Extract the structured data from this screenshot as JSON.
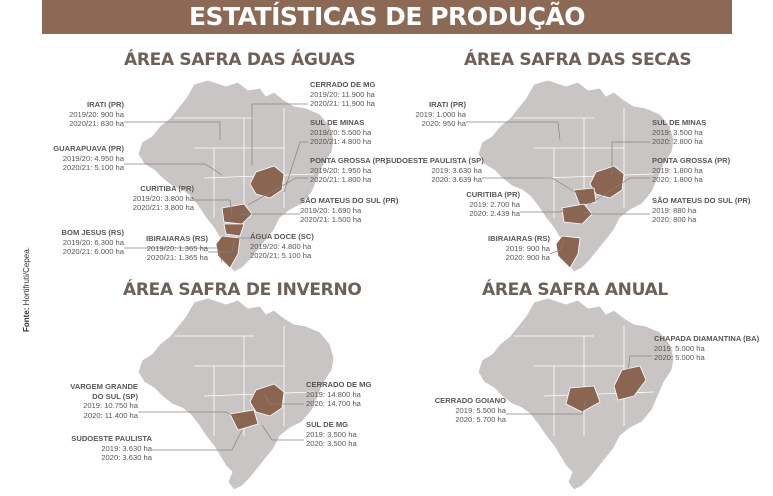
{
  "title": "ESTATÍSTICAS DE PRODUÇÃO",
  "source_label": "Fonte:",
  "source_value": "Hortifruti/Cepea.",
  "colors": {
    "banner": "#8c6955",
    "map_base": "#c9c5c4",
    "highlight": "#8a6552",
    "state_border": "#ffffff"
  },
  "sections": {
    "aguas": {
      "title": "ÁREA SAFRA DAS ÁGUAS",
      "labels": [
        {
          "name": "IRATI (PR)",
          "lines": [
            "2019/20: 900 ha",
            "2020/21: 830 ha"
          ]
        },
        {
          "name": "GUARAPUAVA (PR)",
          "lines": [
            "2019/20: 4.950 ha",
            "2020/21: 5.100 ha"
          ]
        },
        {
          "name": "CURITIBA (PR)",
          "lines": [
            "2019/20: 3.800 ha",
            "2020/21: 3.800 ha"
          ]
        },
        {
          "name": "BOM JESUS (RS)",
          "lines": [
            "2019/20: 6.300 ha",
            "2020/21: 6.000 ha"
          ]
        },
        {
          "name": "IBIRAIARAS (RS)",
          "lines": [
            "2019/20: 1.365 ha",
            "2020/21: 1.365 ha"
          ]
        },
        {
          "name": "CERRADO DE MG",
          "lines": [
            "2019/20: 11.900 ha",
            "2020/21: 11.900 ha"
          ]
        },
        {
          "name": "SUL DE MINAS",
          "lines": [
            "2019/20: 5.500 ha",
            "2020/21: 4.800 ha"
          ]
        },
        {
          "name": "PONTA GROSSA (PR)",
          "lines": [
            "2019/20: 1.950 ha",
            "2020/21: 1.800 ha"
          ]
        },
        {
          "name": "SÃO MATEUS DO SUL (PR)",
          "lines": [
            "2019/20: 1.690 ha",
            "2020/21: 1.500 ha"
          ]
        },
        {
          "name": "ÁGUA DOCE (SC)",
          "lines": [
            "2019/20: 4.800 ha",
            "2020/21: 5.100 ha"
          ]
        }
      ]
    },
    "secas": {
      "title": "ÁREA SAFRA DAS SECAS",
      "labels": [
        {
          "name": "IRATI (PR)",
          "lines": [
            "2019: 1.000 ha",
            "2020: 950 ha"
          ]
        },
        {
          "name": "SUDOESTE PAULISTA (SP)",
          "lines": [
            "2019: 3.630 ha",
            "2020: 3.639 ha"
          ]
        },
        {
          "name": "CURITIBA (PR)",
          "lines": [
            "2019: 2.700 ha",
            "2020: 2.439 ha"
          ]
        },
        {
          "name": "IBIRAIARAS (RS)",
          "lines": [
            "2019: 900 ha",
            "2020: 900 ha"
          ]
        },
        {
          "name": "SUL DE MINAS",
          "lines": [
            "2019: 3.500 ha",
            "2020: 2.800 ha"
          ]
        },
        {
          "name": "PONTA GROSSA (PR)",
          "lines": [
            "2019: 1.800 ha",
            "2020: 1.800 ha"
          ]
        },
        {
          "name": "SÃO MATEUS DO SUL (PR)",
          "lines": [
            "2019: 880 ha",
            "2020: 800 ha"
          ]
        }
      ]
    },
    "inverno": {
      "title": "ÁREA SAFRA DE INVERNO",
      "labels": [
        {
          "name": "VARGEM GRANDE",
          "name2": "DO SUL (SP)",
          "lines": [
            "2019: 10.750 ha",
            "2020: 11.400 ha"
          ]
        },
        {
          "name": "SUDOESTE PAULISTA",
          "lines": [
            "2019: 3.630 ha",
            "2020: 3.630 ha"
          ]
        },
        {
          "name": "CERRADO DE MG",
          "lines": [
            "2019: 14.800 ha",
            "2020: 14.700 ha"
          ]
        },
        {
          "name": "SUL DE MG",
          "lines": [
            "2019: 3.500 ha",
            "2020: 3.500 ha"
          ]
        }
      ]
    },
    "anual": {
      "title": "ÁREA SAFRA ANUAL",
      "labels": [
        {
          "name": "CHAPADA DIAMANTINA (BA)",
          "lines": [
            "2019: 5.000 ha",
            "2020: 5.000 ha"
          ]
        },
        {
          "name": "CERRADO GOIANO",
          "lines": [
            "2019: 5.500 ha",
            "2020: 5.700 ha"
          ]
        }
      ]
    }
  }
}
